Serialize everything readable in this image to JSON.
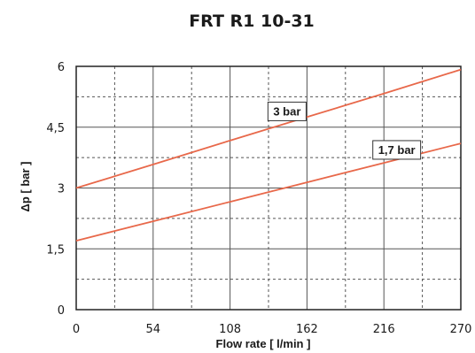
{
  "chart_data": {
    "type": "line",
    "title": "FRT R1 10-31",
    "xlabel": "Flow rate [ l/min ]",
    "ylabel": "Δp [ bar ]",
    "xlim": [
      0,
      270
    ],
    "ylim": [
      0,
      6
    ],
    "x_ticks": [
      "0",
      "54",
      "108",
      "162",
      "216",
      "270"
    ],
    "y_ticks": [
      "0",
      "1,5",
      "3",
      "4,5",
      "6"
    ],
    "x_tick_values": [
      0,
      54,
      108,
      162,
      216,
      270
    ],
    "y_tick_values": [
      0,
      1.5,
      3,
      4.5,
      6
    ],
    "grid": true,
    "series": [
      {
        "name": "3 bar",
        "x": [
          0,
          54,
          108,
          162,
          216,
          270
        ],
        "values": [
          3.0,
          3.58,
          4.17,
          4.75,
          5.33,
          5.92
        ],
        "label_at": [
          148,
          4.9
        ]
      },
      {
        "name": "1,7 bar",
        "x": [
          0,
          54,
          108,
          162,
          216,
          270
        ],
        "values": [
          1.7,
          2.18,
          2.66,
          3.14,
          3.62,
          4.1
        ],
        "label_at": [
          225,
          3.95
        ]
      }
    ],
    "colors": {
      "line": "#e8684a",
      "grid_major": "#555555",
      "grid_minor": "#555555",
      "frame": "#222222",
      "label_box_border": "#333333"
    }
  }
}
